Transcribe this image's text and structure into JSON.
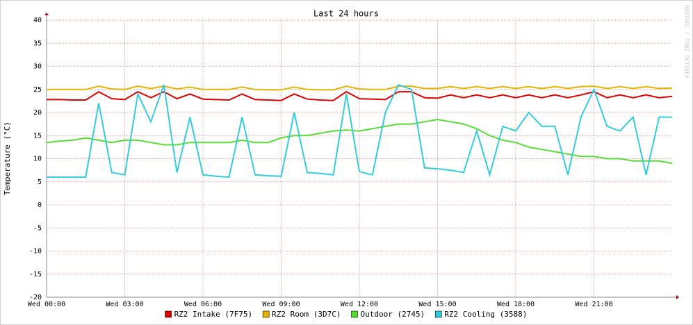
{
  "chart_data": {
    "type": "line",
    "title": "Last 24 hours",
    "y_label": "Temperature (°C)",
    "watermark": "RRDTOOL / TOBI OETIKER",
    "x": [
      0,
      0.5,
      1,
      1.5,
      2,
      2.5,
      3,
      3.5,
      4,
      4.5,
      5,
      5.5,
      6,
      6.5,
      7,
      7.5,
      8,
      8.5,
      9,
      9.5,
      10,
      10.5,
      11,
      11.5,
      12,
      12.5,
      13,
      13.5,
      14,
      14.5,
      15,
      15.5,
      16,
      16.5,
      17,
      17.5,
      18,
      18.5,
      19,
      19.5,
      20,
      20.5,
      21,
      21.5,
      22,
      22.5,
      23,
      23.5,
      24
    ],
    "xlim": [
      0,
      24
    ],
    "xticks": [
      {
        "value": 0,
        "label": "Wed 00:00"
      },
      {
        "value": 3,
        "label": "Wed 03:00"
      },
      {
        "value": 6,
        "label": "Wed 06:00"
      },
      {
        "value": 9,
        "label": "Wed 09:00"
      },
      {
        "value": 12,
        "label": "Wed 12:00"
      },
      {
        "value": 15,
        "label": "Wed 15:00"
      },
      {
        "value": 18,
        "label": "Wed 18:00"
      },
      {
        "value": 21,
        "label": "Wed 21:00"
      }
    ],
    "ylim": [
      -20,
      40
    ],
    "yticks": [
      -20,
      -15,
      -10,
      -5,
      0,
      5,
      10,
      15,
      20,
      25,
      30,
      35,
      40
    ],
    "grid": true,
    "legend": "bottom",
    "series": [
      {
        "name": "RZ2 Intake (7F75)",
        "color": "#e00000",
        "values": [
          22.8,
          22.8,
          22.7,
          22.7,
          24.5,
          23,
          22.8,
          24.5,
          23.2,
          24.5,
          23,
          24,
          22.9,
          22.8,
          22.7,
          24,
          22.8,
          22.7,
          22.6,
          24,
          22.9,
          22.7,
          22.6,
          24.5,
          23,
          22.9,
          22.8,
          24.5,
          24.5,
          23.2,
          23.1,
          23.8,
          23.2,
          23.8,
          23.2,
          23.8,
          23.2,
          23.8,
          23.2,
          23.8,
          23.2,
          23.8,
          24.5,
          23.2,
          23.8,
          23.2,
          23.8,
          23.2,
          23.5
        ]
      },
      {
        "name": "RZ2 Room (3D7C)",
        "color": "#e5b400",
        "values": [
          25,
          25,
          25,
          25,
          25.7,
          25.1,
          25,
          25.7,
          25.2,
          25.7,
          25.1,
          25.5,
          25,
          25,
          25,
          25.5,
          25,
          24.9,
          24.9,
          25.5,
          25,
          24.9,
          24.9,
          25.7,
          25.1,
          25,
          25,
          25.7,
          25.7,
          25.2,
          25.2,
          25.6,
          25.2,
          25.6,
          25.2,
          25.6,
          25.2,
          25.6,
          25.2,
          25.6,
          25.2,
          25.6,
          25.7,
          25.2,
          25.6,
          25.2,
          25.6,
          25.2,
          25.3
        ]
      },
      {
        "name": "Outdoor (2745)",
        "color": "#55dd33",
        "values": [
          13.5,
          13.8,
          14,
          14.5,
          14,
          13.5,
          14,
          14,
          13.5,
          13,
          13,
          13.5,
          13.5,
          13.5,
          13.5,
          14,
          13.5,
          13.5,
          14.5,
          15,
          15,
          15.5,
          16,
          16.2,
          16,
          16.5,
          17,
          17.5,
          17.5,
          18,
          18.5,
          18,
          17.5,
          16.5,
          15,
          14,
          13.5,
          12.5,
          12,
          11.5,
          11,
          10.5,
          10.5,
          10,
          10,
          9.5,
          9.5,
          9.5,
          9
        ]
      },
      {
        "name": "RZ2 Cooling (3588)",
        "color": "#33ccdd",
        "values": [
          6,
          6,
          6,
          6,
          22,
          7,
          6.5,
          24,
          18,
          26,
          7,
          19,
          6.5,
          6.2,
          6,
          19,
          6.5,
          6.3,
          6.2,
          20,
          7,
          6.8,
          6.5,
          24,
          7.2,
          6.5,
          20,
          26,
          25,
          8,
          7.8,
          7.5,
          7,
          16,
          6.5,
          17,
          16,
          20,
          17,
          17,
          6.5,
          19,
          25,
          17,
          16,
          19,
          6.5,
          19,
          19
        ]
      }
    ]
  }
}
